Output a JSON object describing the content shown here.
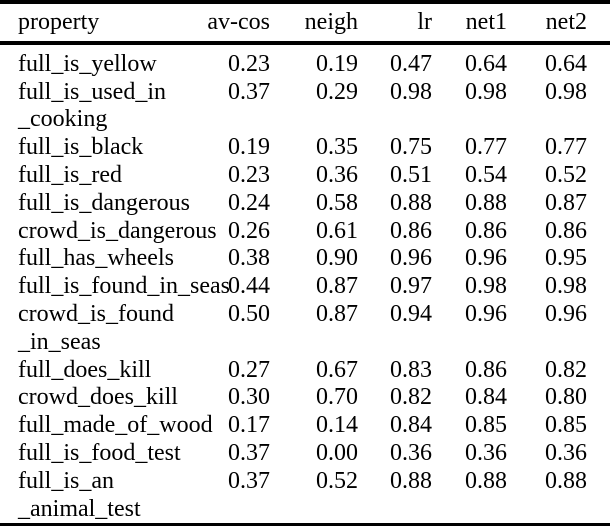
{
  "style": {
    "background": "#ffffff",
    "text_color": "#000000",
    "rule_color": "#000000"
  },
  "table": {
    "columns": [
      "property",
      "av-cos",
      "neigh",
      "lr",
      "net1",
      "net2"
    ],
    "rows": [
      {
        "property_lines": [
          "full_is_yellow"
        ],
        "values": [
          "0.23",
          "0.19",
          "0.47",
          "0.64",
          "0.64"
        ]
      },
      {
        "property_lines": [
          "full_is_used_in",
          "_cooking"
        ],
        "values": [
          "0.37",
          "0.29",
          "0.98",
          "0.98",
          "0.98"
        ]
      },
      {
        "property_lines": [
          "full_is_black"
        ],
        "values": [
          "0.19",
          "0.35",
          "0.75",
          "0.77",
          "0.77"
        ]
      },
      {
        "property_lines": [
          "full_is_red"
        ],
        "values": [
          "0.23",
          "0.36",
          "0.51",
          "0.54",
          "0.52"
        ]
      },
      {
        "property_lines": [
          "full_is_dangerous"
        ],
        "values": [
          "0.24",
          "0.58",
          "0.88",
          "0.88",
          "0.87"
        ]
      },
      {
        "property_lines": [
          "crowd_is_dangerous"
        ],
        "values": [
          "0.26",
          "0.61",
          "0.86",
          "0.86",
          "0.86"
        ]
      },
      {
        "property_lines": [
          "full_has_wheels"
        ],
        "values": [
          "0.38",
          "0.90",
          "0.96",
          "0.96",
          "0.95"
        ]
      },
      {
        "property_lines": [
          "full_is_found_in_seas"
        ],
        "values": [
          "0.44",
          "0.87",
          "0.97",
          "0.98",
          "0.98"
        ]
      },
      {
        "property_lines": [
          "crowd_is_found",
          "_in_seas"
        ],
        "values": [
          "0.50",
          "0.87",
          "0.94",
          "0.96",
          "0.96"
        ]
      },
      {
        "property_lines": [
          "full_does_kill"
        ],
        "values": [
          "0.27",
          "0.67",
          "0.83",
          "0.86",
          "0.82"
        ]
      },
      {
        "property_lines": [
          "crowd_does_kill"
        ],
        "values": [
          "0.30",
          "0.70",
          "0.82",
          "0.84",
          "0.80"
        ]
      },
      {
        "property_lines": [
          "full_made_of_wood"
        ],
        "values": [
          "0.17",
          "0.14",
          "0.84",
          "0.85",
          "0.85"
        ]
      },
      {
        "property_lines": [
          "full_is_food_test"
        ],
        "values": [
          "0.37",
          "0.00",
          "0.36",
          "0.36",
          "0.36"
        ]
      },
      {
        "property_lines": [
          "full_is_an",
          "_animal_test"
        ],
        "values": [
          "0.37",
          "0.52",
          "0.88",
          "0.88",
          "0.88"
        ]
      }
    ]
  }
}
